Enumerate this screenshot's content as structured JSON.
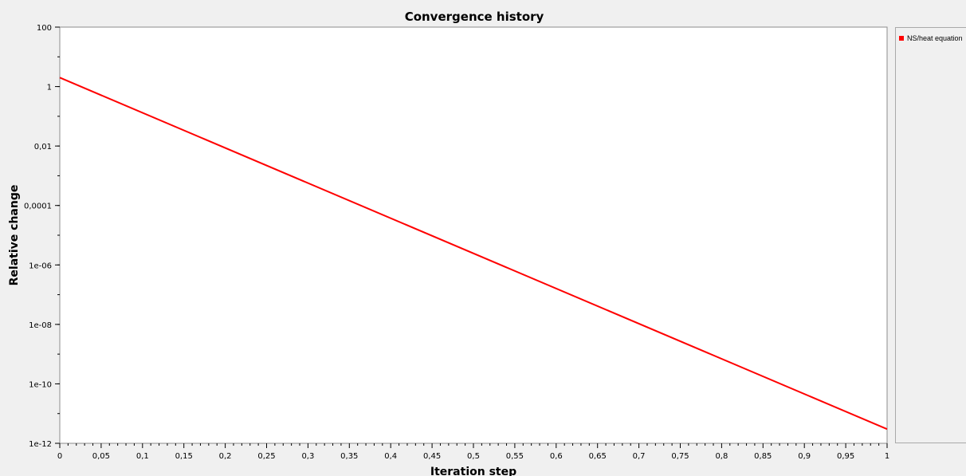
{
  "chart_data": {
    "type": "line",
    "title": "Convergence history",
    "xlabel": "Iteration step",
    "ylabel": "Relative change",
    "x_scale": "linear",
    "y_scale": "log",
    "xlim": [
      0,
      1
    ],
    "ylim": [
      1e-12,
      100
    ],
    "x_ticks": [
      0,
      0.05,
      0.1,
      0.15,
      0.2,
      0.25,
      0.3,
      0.35,
      0.4,
      0.45,
      0.5,
      0.55,
      0.6,
      0.65,
      0.7,
      0.75,
      0.8,
      0.85,
      0.9,
      0.95,
      1
    ],
    "x_tick_labels": [
      "0",
      "0,05",
      "0,1",
      "0,15",
      "0,2",
      "0,25",
      "0,3",
      "0,35",
      "0,4",
      "0,45",
      "0,5",
      "0,55",
      "0,6",
      "0,65",
      "0,7",
      "0,75",
      "0,8",
      "0,85",
      "0,9",
      "0,95",
      "1"
    ],
    "y_ticks": [
      100,
      1,
      0.01,
      0.0001,
      1e-06,
      1e-08,
      1e-10,
      1e-12
    ],
    "y_tick_labels": [
      "100",
      "1",
      "0,01",
      "0,0001",
      "1e-06",
      "1e-08",
      "1e-10",
      "1e-12"
    ],
    "grid": false,
    "legend_position": "right",
    "series": [
      {
        "name": "NS/heat equation",
        "color": "#ff0000",
        "x": [
          0,
          1
        ],
        "y": [
          2,
          3e-12
        ]
      }
    ]
  }
}
